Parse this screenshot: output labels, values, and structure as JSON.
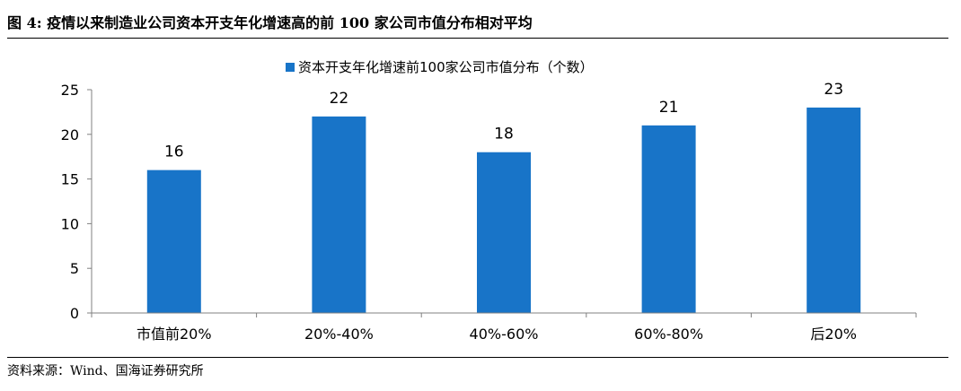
{
  "figure": {
    "title": "图 4: 疫情以来制造业公司资本开支年化增速高的前 100 家公司市值分布相对平均",
    "source": "资料来源：Wind、国海证券研究所"
  },
  "colors": {
    "bar": "#1874c8",
    "axis": "#808080",
    "text": "#000000"
  },
  "chart_data": {
    "type": "bar",
    "categories": [
      "市值前20%",
      "20%-40%",
      "40%-60%",
      "60%-80%",
      "后20%"
    ],
    "series": [
      {
        "name": "资本开支年化增速前100家公司市值分布（个数）",
        "values": [
          16,
          22,
          18,
          21,
          23
        ]
      }
    ],
    "ylim": [
      0,
      25
    ],
    "yticks": [
      0,
      5,
      10,
      15,
      20,
      25
    ],
    "xlabel": "",
    "ylabel": "",
    "grid": false,
    "legend_position": "top-center",
    "data_labels": true
  }
}
